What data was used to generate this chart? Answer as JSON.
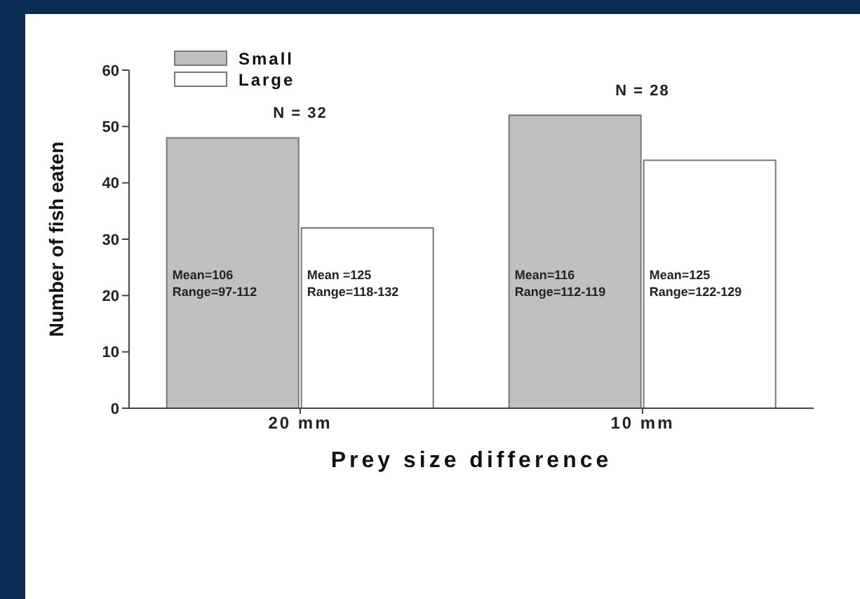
{
  "chart_data": {
    "type": "bar",
    "xlabel": "Prey size difference",
    "ylabel": "Number of fish eaten",
    "categories": [
      "20 mm",
      "10 mm"
    ],
    "series": [
      {
        "name": "Small",
        "color": "#c0c0c0",
        "values": [
          48,
          52
        ],
        "value_labels": [
          "Mean=106\nRange=97-112",
          "Mean=116\nRange=112-119"
        ]
      },
      {
        "name": "Large",
        "color": "#ffffff",
        "values": [
          32,
          44
        ],
        "value_labels": [
          "Mean =125\nRange=118-132",
          "Mean=125\nRange=122-129"
        ]
      }
    ],
    "annotations": [
      "N = 32",
      "N = 28"
    ],
    "ylim": [
      0,
      60
    ],
    "yticks": [
      0,
      10,
      20,
      30,
      40,
      50,
      60
    ],
    "legend": "top left"
  }
}
